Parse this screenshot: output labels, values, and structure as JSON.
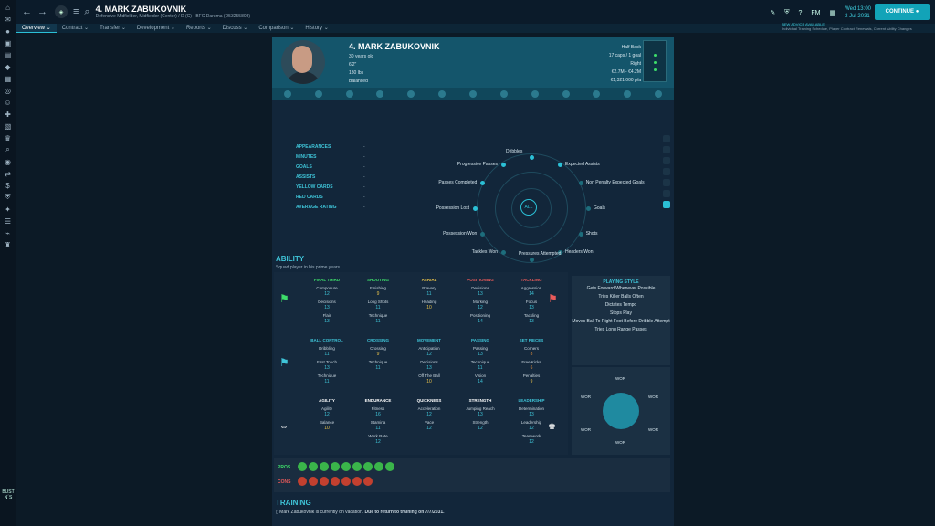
{
  "header": {
    "player_title": "4. MARK ZABUKOVNIK",
    "subtitle": "Defensive Midfielder, Midfielder (Center) / D (C) - BFC Daruma (D53255808)",
    "date_line1": "Wed 13:00",
    "date_line2": "2 Jul 2031",
    "continue_label": "CONTINUE",
    "fm_label": "FM"
  },
  "tabs": [
    "Overview",
    "Contract",
    "Transfer",
    "Development",
    "Reports",
    "Discuss",
    "Comparison",
    "History"
  ],
  "advice": {
    "title": "NEW ADVICE AVAILABLE",
    "text": "Individual Training Schedule, Player Contract Renewals, Current Ability Changes"
  },
  "profile": {
    "name": "4. MARK ZABUKOVNIK",
    "age": "30 years old",
    "height": "6'2\"",
    "weight": "180 lbs",
    "temperament": "Balanced",
    "position": "Half Back",
    "caps": "17 caps / 1 goal",
    "foot": "Right",
    "value": "€2.7M - €4.2M",
    "wage": "€1,321,000 p/a"
  },
  "season_stats": {
    "labels": [
      "APPEARANCES",
      "MINUTES",
      "GOALS",
      "ASSISTS",
      "YELLOW CARDS",
      "RED CARDS",
      "AVERAGE RATING"
    ],
    "values": [
      "-",
      "-",
      "-",
      "-",
      "-",
      "-",
      "-"
    ]
  },
  "radar": {
    "center_label": "ALL",
    "metrics": [
      "Dribbles",
      "Expected Assists",
      "Non Penalty Expected Goals",
      "Goals",
      "Shots",
      "Headers Won",
      "Pressures Attempted",
      "Tackles Won",
      "Possession Won",
      "Possession Lost",
      "Passes Completed",
      "Progressive Passes"
    ]
  },
  "ability": {
    "title": "ABILITY",
    "subtitle": "Squad player in his prime years.",
    "groups": [
      {
        "name": "FINAL THIRD",
        "color": "#3ddc6a",
        "attrs": [
          [
            "Composure",
            "12"
          ],
          [
            "Decisions",
            "13"
          ],
          [
            "Flair",
            "13"
          ]
        ]
      },
      {
        "name": "SHOOTING",
        "color": "#3ddc6a",
        "attrs": [
          [
            "Finishing",
            "9"
          ],
          [
            "Long Shots",
            "11"
          ],
          [
            "Technique",
            "11"
          ]
        ]
      },
      {
        "name": "AERIAL",
        "color": "#e8c14a",
        "attrs": [
          [
            "Bravery",
            "11"
          ],
          [
            "Heading",
            "10"
          ]
        ]
      },
      {
        "name": "POSITIONING",
        "color": "#e85a5a",
        "attrs": [
          [
            "Decisions",
            "13"
          ],
          [
            "Marking",
            "12"
          ],
          [
            "Positioning",
            "14"
          ]
        ]
      },
      {
        "name": "TACKLING",
        "color": "#e85a5a",
        "attrs": [
          [
            "Aggression",
            "14"
          ],
          [
            "Focus",
            "13"
          ],
          [
            "Tackling",
            "13"
          ]
        ]
      },
      {
        "name": "BALL CONTROL",
        "color": "#3fc4d8",
        "attrs": [
          [
            "Dribbling",
            "11"
          ],
          [
            "First Touch",
            "13"
          ],
          [
            "Technique",
            "11"
          ]
        ]
      },
      {
        "name": "CROSSING",
        "color": "#3fc4d8",
        "attrs": [
          [
            "Crossing",
            "9"
          ],
          [
            "Technique",
            "11"
          ]
        ]
      },
      {
        "name": "MOVEMENT",
        "color": "#3fc4d8",
        "attrs": [
          [
            "Anticipation",
            "12"
          ],
          [
            "Decisions",
            "13"
          ],
          [
            "Off The Ball",
            "10"
          ]
        ]
      },
      {
        "name": "PASSING",
        "color": "#3fc4d8",
        "attrs": [
          [
            "Passing",
            "13"
          ],
          [
            "Technique",
            "11"
          ],
          [
            "Vision",
            "14"
          ]
        ]
      },
      {
        "name": "SET PIECES",
        "color": "#3fc4d8",
        "attrs": [
          [
            "Corners",
            "8"
          ],
          [
            "Free Kicks",
            "6"
          ],
          [
            "Penalties",
            "9"
          ]
        ]
      },
      {
        "name": "AGILITY",
        "color": "#ffffff",
        "attrs": [
          [
            "Agility",
            "12"
          ],
          [
            "Balance",
            "10"
          ]
        ]
      },
      {
        "name": "ENDURANCE",
        "color": "#ffffff",
        "attrs": [
          [
            "Fitness",
            "16"
          ],
          [
            "Stamina",
            "11"
          ],
          [
            "Work Rate",
            "12"
          ]
        ]
      },
      {
        "name": "QUICKNESS",
        "color": "#ffffff",
        "attrs": [
          [
            "Acceleration",
            "12"
          ],
          [
            "Pace",
            "12"
          ]
        ]
      },
      {
        "name": "STRENGTH",
        "color": "#ffffff",
        "attrs": [
          [
            "Jumping Reach",
            "13"
          ],
          [
            "Strength",
            "12"
          ]
        ]
      },
      {
        "name": "LEADERSHIP",
        "color": "#3fc4d8",
        "attrs": [
          [
            "Determination",
            "13"
          ],
          [
            "Leadership",
            "12"
          ],
          [
            "Teamwork",
            "12"
          ]
        ]
      }
    ]
  },
  "playing_style": {
    "title": "PLAYING STYLE",
    "items": [
      "Gets Forward Whenever Possible",
      "Tries Killer Balls Often",
      "Dictates Tempo",
      "Stops Play",
      "Moves Ball To Right Foot Before Dribble Attempt",
      "Tries Long Range Passes"
    ]
  },
  "roles": {
    "label": "WOR"
  },
  "pros_label": "PROS",
  "cons_label": "CONS",
  "training": {
    "title": "TRAINING",
    "text": "Mark Zabukovnik is currently on vacation.",
    "text_bold": "Due to return to training on 7/7/2031."
  },
  "logo_text": "BUST N´S"
}
